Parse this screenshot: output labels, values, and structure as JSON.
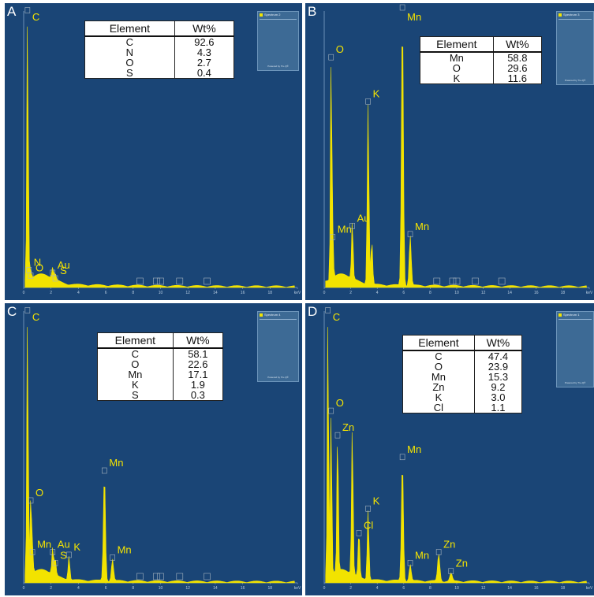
{
  "chart_data": [
    {
      "type": "eds-spectrum",
      "panel": "A",
      "legend": {
        "title": "Spectrum 2",
        "footer": "Powered by Tru-Q®"
      },
      "x_ticks": [
        "0",
        "2",
        "4",
        "6",
        "8",
        "10",
        "12",
        "14",
        "16",
        "18",
        "keV"
      ],
      "table": {
        "headers": [
          "Element",
          "Wt%"
        ],
        "rows": [
          [
            "C",
            "92.6"
          ],
          [
            "N",
            "4.3"
          ],
          [
            "O",
            "2.7"
          ],
          [
            "S",
            "0.4"
          ]
        ]
      },
      "peaks": [
        {
          "energy": 0.28,
          "height": 0.99,
          "label": "C"
        },
        {
          "energy": 0.39,
          "height": 0.05,
          "label": "N"
        },
        {
          "energy": 0.52,
          "height": 0.03,
          "label": "O"
        },
        {
          "energy": 2.12,
          "height": 0.04,
          "label": "Au"
        },
        {
          "energy": 2.31,
          "height": 0.02,
          "label": "S"
        }
      ],
      "markers": [
        {
          "energy": 8.5
        },
        {
          "energy": 9.7
        },
        {
          "energy": 10.0
        },
        {
          "energy": 11.4
        },
        {
          "energy": 13.4
        }
      ]
    },
    {
      "type": "eds-spectrum",
      "panel": "B",
      "legend": {
        "title": "Spectrum 3",
        "footer": "Powered by Tru-Q®"
      },
      "x_ticks": [
        "0",
        "2",
        "4",
        "6",
        "8",
        "10",
        "12",
        "14",
        "16",
        "18",
        "keV"
      ],
      "table": {
        "headers": [
          "Element",
          "Wt%"
        ],
        "rows": [
          [
            "Mn",
            "58.8"
          ],
          [
            "O",
            "29.6"
          ],
          [
            "K",
            "11.6"
          ]
        ]
      },
      "peaks": [
        {
          "energy": 0.52,
          "height": 0.82,
          "label": "O"
        },
        {
          "energy": 0.64,
          "height": 0.17,
          "label": "Mn"
        },
        {
          "energy": 2.12,
          "height": 0.21,
          "label": "Au"
        },
        {
          "energy": 3.31,
          "height": 0.66,
          "label": "K"
        },
        {
          "energy": 3.59,
          "height": 0.16,
          "label": ""
        },
        {
          "energy": 5.9,
          "height": 1.0,
          "label": "Mn"
        },
        {
          "energy": 6.49,
          "height": 0.18,
          "label": "Mn"
        }
      ],
      "markers": [
        {
          "energy": 8.5
        },
        {
          "energy": 9.7
        },
        {
          "energy": 10.0
        },
        {
          "energy": 11.4
        },
        {
          "energy": 13.4
        }
      ]
    },
    {
      "type": "eds-spectrum",
      "panel": "C",
      "legend": {
        "title": "Spectrum 4",
        "footer": "Powered by Tru-Q®"
      },
      "x_ticks": [
        "0",
        "2",
        "4",
        "6",
        "8",
        "10",
        "12",
        "14",
        "16",
        "18",
        "keV"
      ],
      "table": {
        "headers": [
          "Element",
          "Wt%"
        ],
        "rows": [
          [
            "C",
            "58.1"
          ],
          [
            "O",
            "22.6"
          ],
          [
            "Mn",
            "17.1"
          ],
          [
            "K",
            "1.9"
          ],
          [
            "S",
            "0.3"
          ]
        ]
      },
      "peaks": [
        {
          "energy": 0.28,
          "height": 0.99,
          "label": "C"
        },
        {
          "energy": 0.52,
          "height": 0.29,
          "label": "O"
        },
        {
          "energy": 0.64,
          "height": 0.1,
          "label": "Mn"
        },
        {
          "energy": 2.12,
          "height": 0.1,
          "label": "Au"
        },
        {
          "energy": 2.31,
          "height": 0.06,
          "label": "S"
        },
        {
          "energy": 3.31,
          "height": 0.09,
          "label": "K"
        },
        {
          "energy": 5.9,
          "height": 0.4,
          "label": "Mn"
        },
        {
          "energy": 6.49,
          "height": 0.08,
          "label": "Mn"
        }
      ],
      "markers": [
        {
          "energy": 8.5
        },
        {
          "energy": 9.7
        },
        {
          "energy": 10.0
        },
        {
          "energy": 11.4
        },
        {
          "energy": 13.4
        }
      ]
    },
    {
      "type": "eds-spectrum",
      "panel": "D",
      "legend": {
        "title": "Spectrum 1",
        "footer": "Powered by Tru-Q®"
      },
      "x_ticks": [
        "0",
        "2",
        "4",
        "6",
        "8",
        "10",
        "12",
        "14",
        "16",
        "18",
        "keV"
      ],
      "table": {
        "headers": [
          "Element",
          "Wt%"
        ],
        "rows": [
          [
            "C",
            "47.4"
          ],
          [
            "O",
            "23.9"
          ],
          [
            "Mn",
            "15.3"
          ],
          [
            "Zn",
            "9.2"
          ],
          [
            "K",
            "3.0"
          ],
          [
            "Cl",
            "1.1"
          ]
        ]
      },
      "peaks": [
        {
          "energy": 0.28,
          "height": 0.99,
          "label": "C"
        },
        {
          "energy": 0.52,
          "height": 0.62,
          "label": "O"
        },
        {
          "energy": 1.01,
          "height": 0.53,
          "label": "Zn"
        },
        {
          "energy": 2.12,
          "height": 0.55,
          "label": ""
        },
        {
          "energy": 2.62,
          "height": 0.17,
          "label": "Cl"
        },
        {
          "energy": 3.31,
          "height": 0.26,
          "label": "K"
        },
        {
          "energy": 5.9,
          "height": 0.45,
          "label": "Mn"
        },
        {
          "energy": 6.49,
          "height": 0.06,
          "label": "Mn"
        },
        {
          "energy": 8.64,
          "height": 0.1,
          "label": "Zn"
        },
        {
          "energy": 9.57,
          "height": 0.03,
          "label": "Zn"
        }
      ],
      "markers": []
    }
  ],
  "colors": {
    "panel_bg": "#1a4576",
    "spectrum": "#f2e300",
    "label": "#f5e400",
    "letter": "#ffffff",
    "marker_box": "#a8b6c0",
    "table_bg": "#ffffff"
  }
}
